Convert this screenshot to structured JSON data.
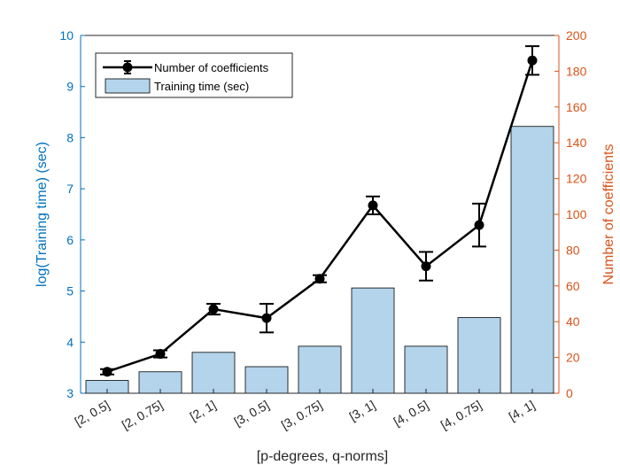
{
  "chart_data": {
    "type": "bar",
    "categories": [
      "[2, 0.5]",
      "[2, 0.75]",
      "[2, 1]",
      "[3, 0.5]",
      "[3, 0.75]",
      "[3, 1]",
      "[4, 0.5]",
      "[4, 0.75]",
      "[4, 1]"
    ],
    "xlabel": "[p-degrees, q-norms]",
    "ylabel_left": "log(Training time) (sec)",
    "ylabel_right": "Number of coefficients",
    "ylim_left": [
      3,
      10
    ],
    "ylim_right": [
      0,
      200
    ],
    "yticks_left": [
      "3",
      "4",
      "5",
      "6",
      "7",
      "8",
      "9",
      "10"
    ],
    "yticks_right": [
      "0",
      "20",
      "40",
      "60",
      "80",
      "100",
      "120",
      "140",
      "160",
      "180",
      "200"
    ],
    "grid": false,
    "legend_position": "top-left",
    "series": [
      {
        "name": "Training time (sec)",
        "type": "bar",
        "axis": "left",
        "color": "#B3D4EB",
        "values": [
          3.25,
          3.42,
          3.8,
          3.52,
          3.92,
          5.06,
          3.92,
          4.48,
          8.22
        ]
      },
      {
        "name": "Number of coefficients",
        "type": "line",
        "axis": "right",
        "color": "#000000",
        "values": [
          12,
          22,
          47,
          42,
          64,
          105,
          71,
          94,
          186
        ],
        "error": [
          1.5,
          2,
          3,
          8,
          2,
          5,
          8,
          12,
          8
        ]
      }
    ],
    "axis_colors": {
      "left": "#0072BD",
      "right": "#D95319"
    }
  }
}
